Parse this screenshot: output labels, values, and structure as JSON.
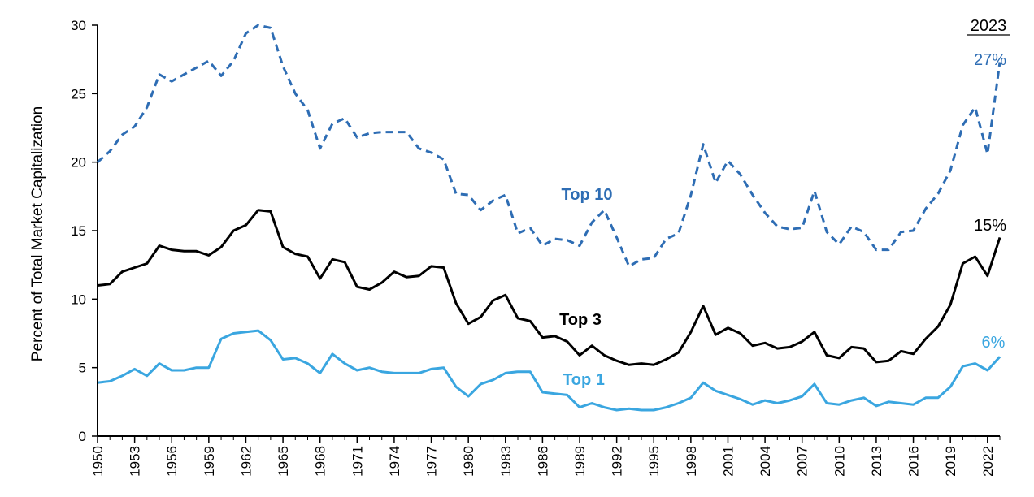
{
  "chart_data": {
    "type": "line",
    "title": "",
    "xlabel": "",
    "ylabel": "Percent of Total Market Capitalization",
    "ylim": [
      0,
      30
    ],
    "yticks": [
      0,
      5,
      10,
      15,
      20,
      25,
      30
    ],
    "xlim": [
      1950,
      2023
    ],
    "xticks": [
      1950,
      1953,
      1956,
      1959,
      1962,
      1965,
      1968,
      1971,
      1974,
      1977,
      1980,
      1983,
      1986,
      1989,
      1992,
      1995,
      1998,
      2001,
      2004,
      2007,
      2010,
      2013,
      2016,
      2019,
      2022
    ],
    "grid": false,
    "end_year_label": "2023",
    "x": [
      1950,
      1951,
      1952,
      1953,
      1954,
      1955,
      1956,
      1957,
      1958,
      1959,
      1960,
      1961,
      1962,
      1963,
      1964,
      1965,
      1966,
      1967,
      1968,
      1969,
      1970,
      1971,
      1972,
      1973,
      1974,
      1975,
      1976,
      1977,
      1978,
      1979,
      1980,
      1981,
      1982,
      1983,
      1984,
      1985,
      1986,
      1987,
      1988,
      1989,
      1990,
      1991,
      1992,
      1993,
      1994,
      1995,
      1996,
      1997,
      1998,
      1999,
      2000,
      2001,
      2002,
      2003,
      2004,
      2005,
      2006,
      2007,
      2008,
      2009,
      2010,
      2011,
      2012,
      2013,
      2014,
      2015,
      2016,
      2017,
      2018,
      2019,
      2020,
      2021,
      2022,
      2023
    ],
    "series": [
      {
        "name": "Top 10",
        "color": "#2e6db4",
        "style": "dashed",
        "end_value_label": "27%",
        "values": [
          20.0,
          20.8,
          22.0,
          22.6,
          24.0,
          26.4,
          25.9,
          26.4,
          26.9,
          27.4,
          26.3,
          27.4,
          29.4,
          30.0,
          29.8,
          27.0,
          25.0,
          23.8,
          21.0,
          22.8,
          23.2,
          21.8,
          22.1,
          22.2,
          22.2,
          22.2,
          21.0,
          20.7,
          20.2,
          17.7,
          17.6,
          16.5,
          17.2,
          17.6,
          14.8,
          15.2,
          13.9,
          14.4,
          14.3,
          13.9,
          15.6,
          16.5,
          14.5,
          12.4,
          12.9,
          13.0,
          14.4,
          14.8,
          17.6,
          21.3,
          18.5,
          20.1,
          19.1,
          17.6,
          16.3,
          15.3,
          15.1,
          15.2,
          17.9,
          14.9,
          14.0,
          15.3,
          14.9,
          13.6,
          13.6,
          14.9,
          15.0,
          16.6,
          17.7,
          19.4,
          22.7,
          24.0,
          20.6,
          27.3
        ]
      },
      {
        "name": "Top 3",
        "color": "#000000",
        "style": "solid",
        "end_value_label": "15%",
        "values": [
          11.0,
          11.1,
          12.0,
          12.3,
          12.6,
          13.9,
          13.6,
          13.5,
          13.5,
          13.2,
          13.8,
          15.0,
          15.4,
          16.5,
          16.4,
          13.8,
          13.3,
          13.1,
          11.5,
          12.9,
          12.7,
          10.9,
          10.7,
          11.2,
          12.0,
          11.6,
          11.7,
          12.4,
          12.3,
          9.7,
          8.2,
          8.7,
          9.9,
          10.3,
          8.6,
          8.4,
          7.2,
          7.3,
          6.9,
          5.9,
          6.6,
          5.9,
          5.5,
          5.2,
          5.3,
          5.2,
          5.6,
          6.1,
          7.6,
          9.5,
          7.4,
          7.9,
          7.5,
          6.6,
          6.8,
          6.4,
          6.5,
          6.9,
          7.6,
          5.9,
          5.7,
          6.5,
          6.4,
          5.4,
          5.5,
          6.2,
          6.0,
          7.1,
          8.0,
          9.6,
          12.6,
          13.1,
          11.7,
          14.5
        ]
      },
      {
        "name": "Top 1",
        "color": "#3aa6e0",
        "style": "solid",
        "end_value_label": "6%",
        "values": [
          3.9,
          4.0,
          4.4,
          4.9,
          4.4,
          5.3,
          4.8,
          4.8,
          5.0,
          5.0,
          7.1,
          7.5,
          7.6,
          7.7,
          7.0,
          5.6,
          5.7,
          5.3,
          4.6,
          6.0,
          5.3,
          4.8,
          5.0,
          4.7,
          4.6,
          4.6,
          4.6,
          4.9,
          5.0,
          3.6,
          2.9,
          3.8,
          4.1,
          4.6,
          4.7,
          4.7,
          3.2,
          3.1,
          3.0,
          2.1,
          2.4,
          2.1,
          1.9,
          2.0,
          1.9,
          1.9,
          2.1,
          2.4,
          2.8,
          3.9,
          3.3,
          3.0,
          2.7,
          2.3,
          2.6,
          2.4,
          2.6,
          2.9,
          3.8,
          2.4,
          2.3,
          2.6,
          2.8,
          2.2,
          2.5,
          2.4,
          2.3,
          2.8,
          2.8,
          3.6,
          5.1,
          5.3,
          4.8,
          5.8
        ]
      }
    ]
  }
}
